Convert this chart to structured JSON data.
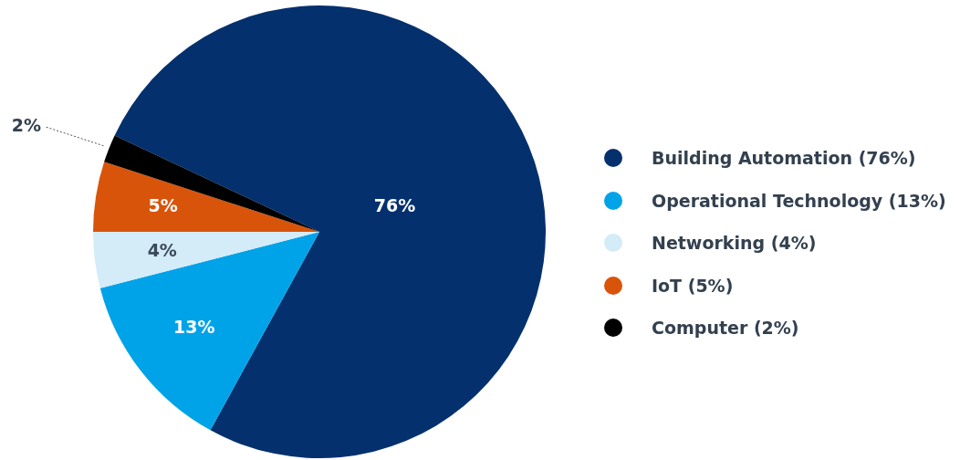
{
  "chart_data": {
    "type": "pie",
    "categories": [
      "Building Automation (76%)",
      "Operational Technology (13%)",
      "Networking (4%)",
      "IoT (5%)",
      "Computer (2%)"
    ],
    "values": [
      76,
      13,
      4,
      5,
      2
    ],
    "colors": [
      "#04306e",
      "#00a3e8",
      "#d4ebf8",
      "#d9540b",
      "#000000"
    ],
    "value_labels": [
      "76%",
      "13%",
      "4%",
      "5%",
      "2%"
    ],
    "legend": "right"
  }
}
